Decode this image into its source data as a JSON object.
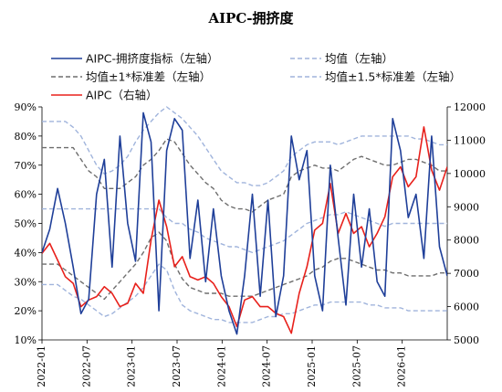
{
  "chart_data": {
    "type": "line",
    "title": "AIPC-拥挤度",
    "xlabel": "",
    "ylabel_left": "",
    "ylabel_right": "",
    "x_ticks": [
      "2022-01",
      "2022-07",
      "2023-01",
      "2023-07",
      "2024-01",
      "2024-07",
      "2025-01",
      "2025-07",
      "2026-01"
    ],
    "x_range": [
      0,
      52
    ],
    "ylim_left": [
      0.1,
      0.9
    ],
    "y_ticks_left": [
      "10%",
      "20%",
      "30%",
      "40%",
      "50%",
      "60%",
      "70%",
      "80%",
      "90%"
    ],
    "ylim_right": [
      5000,
      12000
    ],
    "y_ticks_right": [
      "5000",
      "6000",
      "7000",
      "8000",
      "9000",
      "10000",
      "11000",
      "12000"
    ],
    "legend_position": "top",
    "grid": false,
    "series": [
      {
        "name": "AIPC-拥挤度指标（左轴）",
        "axis": "left",
        "color": "#1f3f99",
        "style": "solid",
        "width": 1.6,
        "values": [
          0.4,
          0.48,
          0.62,
          0.5,
          0.35,
          0.19,
          0.24,
          0.6,
          0.72,
          0.35,
          0.8,
          0.5,
          0.37,
          0.88,
          0.78,
          0.2,
          0.75,
          0.86,
          0.82,
          0.38,
          0.58,
          0.3,
          0.55,
          0.32,
          0.2,
          0.12,
          0.32,
          0.6,
          0.25,
          0.58,
          0.18,
          0.32,
          0.8,
          0.65,
          0.75,
          0.32,
          0.2,
          0.7,
          0.45,
          0.22,
          0.6,
          0.35,
          0.55,
          0.3,
          0.25,
          0.86,
          0.75,
          0.52,
          0.6,
          0.38,
          0.8,
          0.42,
          0.32
        ]
      },
      {
        "name": "均值（左轴）",
        "axis": "left",
        "color": "#a0b4dc",
        "style": "dash",
        "width": 1.4,
        "values": [
          0.55,
          0.55,
          0.55,
          0.55,
          0.55,
          0.55,
          0.55,
          0.55,
          0.55,
          0.55,
          0.55,
          0.55,
          0.55,
          0.55,
          0.55,
          0.55,
          0.52,
          0.5,
          0.5,
          0.48,
          0.47,
          0.45,
          0.44,
          0.43,
          0.42,
          0.42,
          0.41,
          0.4,
          0.41,
          0.42,
          0.43,
          0.44,
          0.46,
          0.48,
          0.5,
          0.51,
          0.52,
          0.53,
          0.53,
          0.54,
          0.53,
          0.52,
          0.51,
          0.5,
          0.49,
          0.5,
          0.5,
          0.5,
          0.5,
          0.5,
          0.5,
          0.5,
          0.5
        ]
      },
      {
        "name": "均值±1*标准差（左轴）",
        "axis": "left",
        "color": "#6e6e6e",
        "style": "dash",
        "width": 1.4,
        "values": [
          0.76,
          0.76,
          0.76,
          0.76,
          0.76,
          0.72,
          0.68,
          0.66,
          0.62,
          0.62,
          0.62,
          0.64,
          0.66,
          0.7,
          0.72,
          0.75,
          0.79,
          0.78,
          0.74,
          0.7,
          0.67,
          0.64,
          0.62,
          0.58,
          0.56,
          0.55,
          0.55,
          0.54,
          0.56,
          0.58,
          0.59,
          0.6,
          0.66,
          0.68,
          0.69,
          0.7,
          0.69,
          0.69,
          0.68,
          0.7,
          0.72,
          0.73,
          0.72,
          0.71,
          0.7,
          0.7,
          0.71,
          0.72,
          0.72,
          0.71,
          0.7,
          0.68,
          0.68
        ]
      },
      {
        "name": "均值±1*标准差（左轴）",
        "axis": "left",
        "color": "#6e6e6e",
        "style": "dash",
        "width": 1.4,
        "values": [
          0.36,
          0.36,
          0.36,
          0.34,
          0.32,
          0.3,
          0.28,
          0.26,
          0.24,
          0.27,
          0.3,
          0.33,
          0.36,
          0.4,
          0.45,
          0.47,
          0.44,
          0.36,
          0.31,
          0.28,
          0.27,
          0.26,
          0.26,
          0.26,
          0.25,
          0.25,
          0.25,
          0.25,
          0.26,
          0.27,
          0.28,
          0.29,
          0.3,
          0.31,
          0.32,
          0.34,
          0.35,
          0.37,
          0.38,
          0.38,
          0.37,
          0.36,
          0.35,
          0.34,
          0.34,
          0.33,
          0.33,
          0.32,
          0.32,
          0.32,
          0.32,
          0.33,
          0.33
        ]
      },
      {
        "name": "均值±1.5*标准差（左轴）",
        "axis": "left",
        "color": "#a0b4dc",
        "style": "dash",
        "width": 1.4,
        "values": [
          0.85,
          0.85,
          0.85,
          0.85,
          0.83,
          0.8,
          0.75,
          0.7,
          0.67,
          0.68,
          0.7,
          0.73,
          0.78,
          0.82,
          0.85,
          0.88,
          0.9,
          0.88,
          0.86,
          0.83,
          0.8,
          0.76,
          0.72,
          0.68,
          0.66,
          0.64,
          0.64,
          0.63,
          0.63,
          0.64,
          0.66,
          0.68,
          0.73,
          0.75,
          0.77,
          0.78,
          0.78,
          0.78,
          0.77,
          0.78,
          0.79,
          0.8,
          0.8,
          0.8,
          0.8,
          0.8,
          0.8,
          0.8,
          0.79,
          0.79,
          0.78,
          0.77,
          0.77
        ]
      },
      {
        "name": "均值±1.5*标准差（左轴）",
        "axis": "left",
        "color": "#a0b4dc",
        "style": "dash",
        "width": 1.4,
        "values": [
          0.29,
          0.29,
          0.29,
          0.27,
          0.25,
          0.24,
          0.22,
          0.2,
          0.18,
          0.19,
          0.21,
          0.23,
          0.25,
          0.28,
          0.32,
          0.36,
          0.34,
          0.27,
          0.22,
          0.2,
          0.19,
          0.18,
          0.17,
          0.17,
          0.16,
          0.16,
          0.16,
          0.16,
          0.17,
          0.18,
          0.18,
          0.19,
          0.19,
          0.2,
          0.21,
          0.22,
          0.22,
          0.23,
          0.23,
          0.23,
          0.23,
          0.23,
          0.22,
          0.22,
          0.21,
          0.21,
          0.21,
          0.2,
          0.2,
          0.2,
          0.2,
          0.2,
          0.2
        ]
      },
      {
        "name": "AIPC（右轴）",
        "axis": "right",
        "color": "#e8211c",
        "style": "solid",
        "width": 1.6,
        "values": [
          7600,
          7900,
          7400,
          6900,
          6700,
          6000,
          6200,
          6300,
          6600,
          6400,
          6000,
          6100,
          6700,
          6400,
          8000,
          9200,
          8400,
          7200,
          7500,
          6900,
          6800,
          6900,
          6700,
          6300,
          6000,
          5400,
          6200,
          6300,
          6000,
          6000,
          5800,
          5700,
          5200,
          6400,
          7200,
          8300,
          8500,
          9700,
          8200,
          8800,
          8200,
          8400,
          7800,
          8200,
          8700,
          9900,
          10200,
          9600,
          9900,
          11400,
          10100,
          9500,
          10200
        ]
      }
    ]
  }
}
